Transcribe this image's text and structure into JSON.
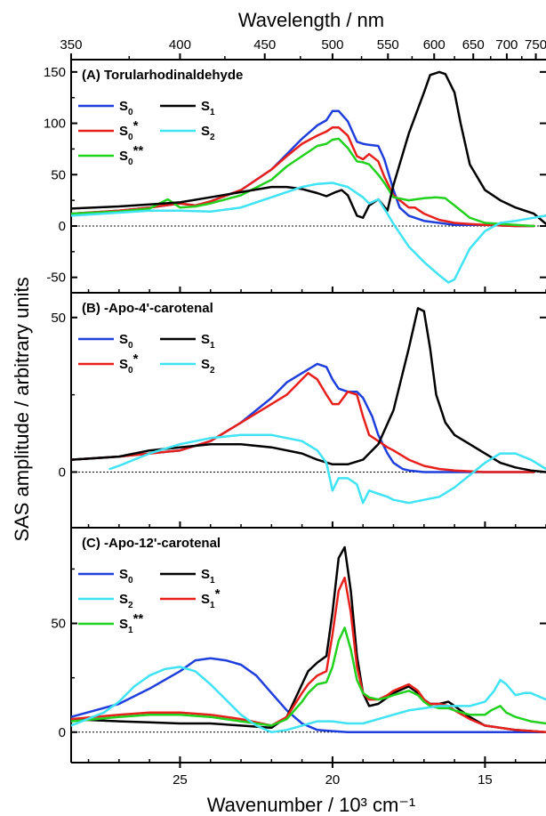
{
  "figure": {
    "top_axis_title": "Wavelength / nm",
    "bottom_axis_title": "Wavenumber / 10³ cm⁻¹",
    "y_axis_title": "SAS amplitude / arbitrary units"
  },
  "colors": {
    "S0": "#1f3fdc",
    "S0*": "#e8201c",
    "S0**": "#22d11e",
    "S1": "#000000",
    "S1*": "#e8201c",
    "S1**": "#22d11e",
    "S2": "#3fe3f3"
  },
  "chart_data": [
    {
      "type": "line",
      "panel": "A",
      "title": "(A) Torularhodinaldehyde",
      "xlabel": "Wavenumber / 10³ cm⁻¹",
      "top_xlabel": "Wavelength / nm",
      "ylabel": "SAS amplitude / arbitrary units",
      "xlim": [
        28.57,
        13.0
      ],
      "ylim": [
        -65,
        162
      ],
      "x_reversed": true,
      "grid": false,
      "zero_line": "dashed",
      "y_ticks": [
        -50,
        0,
        50,
        100,
        150
      ],
      "y_tick_labels": [
        "-50",
        "0",
        "50",
        "100",
        "150"
      ],
      "x_ticks": [
        25,
        20,
        15
      ],
      "top_ticks_nm": [
        350,
        400,
        450,
        500,
        550,
        600,
        650,
        700,
        750
      ],
      "top_tick_labels": [
        "350",
        "400",
        "450",
        "500",
        "550",
        "600",
        "650",
        "700",
        "750"
      ],
      "legend": {
        "position": "top-left",
        "entries": [
          {
            "key": "S0",
            "label": "S",
            "sub": "0",
            "sup": ""
          },
          {
            "key": "S1",
            "label": "S",
            "sub": "1",
            "sup": ""
          },
          {
            "key": "S0*",
            "label": "S",
            "sub": "0",
            "sup": "*"
          },
          {
            "key": "S2",
            "label": "S",
            "sub": "2",
            "sup": ""
          },
          {
            "key": "S0**",
            "label": "S",
            "sub": "0",
            "sup": "**"
          }
        ]
      },
      "series": [
        {
          "key": "S0",
          "x": [
            28.57,
            27,
            26,
            25,
            24.5,
            24,
            23,
            22,
            21.5,
            21,
            20.5,
            20.2,
            20,
            19.8,
            19.5,
            19.2,
            19,
            18.8,
            18.5,
            18.3,
            18,
            17.8,
            17.5,
            17,
            16.5,
            16,
            15.5,
            15,
            14,
            13.4
          ],
          "y": [
            12,
            15,
            18,
            22,
            20,
            24,
            35,
            55,
            70,
            85,
            98,
            103,
            112,
            112,
            102,
            82,
            80,
            79,
            78,
            65,
            35,
            18,
            10,
            5,
            3,
            1,
            1,
            1,
            0,
            0
          ]
        },
        {
          "key": "S0*",
          "x": [
            28.57,
            27,
            26,
            25,
            24.5,
            24,
            23,
            22,
            21.5,
            21,
            20.5,
            20.2,
            20,
            19.8,
            19.5,
            19.2,
            19,
            18.8,
            18.5,
            18.3,
            18,
            17.5,
            17.3,
            17,
            16.5,
            16,
            15.5,
            15,
            14,
            13.4
          ],
          "y": [
            12,
            15,
            18,
            22,
            20,
            24,
            35,
            55,
            68,
            80,
            88,
            92,
            96,
            96,
            88,
            68,
            65,
            70,
            63,
            48,
            30,
            18,
            18,
            12,
            6,
            3,
            2,
            1,
            0,
            0
          ]
        },
        {
          "key": "S0**",
          "x": [
            28.57,
            27,
            26,
            25.4,
            25,
            24.5,
            24,
            23,
            22,
            21.5,
            21,
            20.5,
            20.2,
            20,
            19.8,
            19.5,
            19.2,
            19,
            18.8,
            18.5,
            18.3,
            18,
            17.5,
            17,
            16.6,
            16.3,
            16,
            15.5,
            15,
            14,
            13.4
          ],
          "y": [
            12,
            14,
            17,
            26,
            18,
            19,
            22,
            30,
            45,
            58,
            68,
            78,
            80,
            84,
            85,
            76,
            63,
            62,
            60,
            50,
            42,
            28,
            25,
            27,
            28,
            27,
            20,
            8,
            3,
            1,
            0
          ]
        },
        {
          "key": "S1",
          "x": [
            28.57,
            27,
            26,
            25,
            24,
            23,
            22,
            21.5,
            21,
            20.5,
            20.2,
            19.9,
            19.7,
            19.5,
            19.2,
            19,
            18.8,
            18.5,
            18.2,
            18,
            17.5,
            17,
            16.8,
            16.5,
            16.3,
            16,
            15.8,
            15.5,
            15,
            14.5,
            14,
            13.4,
            13.0
          ],
          "y": [
            17,
            19,
            21,
            23,
            28,
            33,
            38,
            38,
            36,
            32,
            29,
            33,
            35,
            30,
            10,
            8,
            20,
            26,
            15,
            40,
            90,
            130,
            147,
            150,
            148,
            130,
            100,
            60,
            35,
            25,
            18,
            12,
            2
          ]
        },
        {
          "key": "S2",
          "x": [
            28.57,
            27,
            26,
            25,
            24,
            23,
            22,
            21,
            20.5,
            20,
            19.5,
            19,
            18.8,
            18.5,
            18.2,
            18,
            17.5,
            17,
            16.5,
            16.2,
            16,
            15.8,
            15.5,
            15,
            14.5,
            14,
            13.4,
            13.0
          ],
          "y": [
            10,
            13,
            15,
            15,
            14,
            18,
            28,
            38,
            41,
            42,
            38,
            28,
            22,
            26,
            12,
            2,
            -20,
            -35,
            -48,
            -55,
            -52,
            -40,
            -22,
            -5,
            3,
            5,
            8,
            10
          ]
        }
      ]
    },
    {
      "type": "line",
      "panel": "B",
      "title": "(B)   -Apo-4'-carotenal",
      "xlabel": "Wavenumber / 10³ cm⁻¹",
      "ylabel": "SAS amplitude / arbitrary units",
      "xlim": [
        28.57,
        13.0
      ],
      "ylim": [
        -18,
        58
      ],
      "x_reversed": true,
      "grid": false,
      "zero_line": "dashed",
      "y_ticks": [
        0,
        50
      ],
      "y_tick_labels": [
        "0",
        "50"
      ],
      "x_ticks": [
        25,
        20,
        15
      ],
      "legend": {
        "position": "top-left",
        "entries": [
          {
            "key": "S0",
            "label": "S",
            "sub": "0",
            "sup": ""
          },
          {
            "key": "S1",
            "label": "S",
            "sub": "1",
            "sup": ""
          },
          {
            "key": "S0*",
            "label": "S",
            "sub": "0",
            "sup": "*"
          },
          {
            "key": "S2",
            "label": "S",
            "sub": "2",
            "sup": ""
          }
        ]
      },
      "series": [
        {
          "key": "S0",
          "x": [
            28.57,
            27,
            26,
            25,
            24,
            23,
            22,
            21.5,
            21,
            20.5,
            20.2,
            20,
            19.8,
            19.5,
            19.2,
            19,
            18.7,
            18.5,
            18.2,
            18,
            17.7,
            17.5,
            17,
            16.5,
            16,
            15,
            14,
            13.4
          ],
          "y": [
            4,
            5,
            6,
            7,
            10,
            16,
            24,
            29,
            32,
            35,
            34,
            30,
            27,
            26,
            26,
            24,
            18,
            12,
            6,
            3,
            1,
            0.5,
            0,
            0,
            0,
            0,
            0,
            0
          ]
        },
        {
          "key": "S0*",
          "x": [
            28.57,
            27,
            26,
            25,
            24,
            23,
            22,
            21.5,
            21,
            20.8,
            20.5,
            20.2,
            20,
            19.8,
            19.5,
            19.2,
            19,
            18.8,
            18.5,
            18.2,
            18,
            17.5,
            17,
            16.5,
            16,
            15,
            14,
            13.4
          ],
          "y": [
            4,
            5,
            6,
            7,
            10,
            16,
            22,
            25,
            30,
            32,
            30,
            25,
            22,
            22,
            26,
            25,
            18,
            12,
            10,
            8,
            7,
            4,
            2,
            1,
            0.5,
            0,
            0,
            0
          ]
        },
        {
          "key": "S1",
          "x": [
            28.57,
            27,
            26,
            25,
            24,
            23,
            22,
            21,
            20.5,
            20,
            19.5,
            19,
            18.5,
            18,
            17.5,
            17.2,
            17,
            16.8,
            16.6,
            16.3,
            16,
            15.5,
            15,
            14.5,
            14,
            13.5,
            13.0
          ],
          "y": [
            4,
            5,
            7,
            8,
            9,
            9,
            8,
            6,
            4,
            2.5,
            2.5,
            4,
            9,
            20,
            40,
            53,
            52,
            40,
            25,
            16,
            12,
            9,
            6,
            3,
            1.5,
            0.5,
            0
          ]
        },
        {
          "key": "S2",
          "x": [
            27.3,
            27,
            26,
            25,
            24,
            23,
            22,
            21,
            20.5,
            20.2,
            20,
            19.8,
            19.5,
            19.2,
            19,
            18.8,
            18.5,
            18.2,
            18,
            17.5,
            17,
            16.5,
            16,
            15.5,
            15,
            14.5,
            14,
            13.5,
            13.0
          ],
          "y": [
            1,
            2,
            6,
            9,
            11,
            12,
            12,
            10,
            7,
            3,
            -6,
            -2,
            -2,
            -4,
            -10,
            -6,
            -7,
            -8,
            -9,
            -10,
            -9,
            -8,
            -5,
            -1,
            3,
            6,
            6,
            4,
            1
          ]
        }
      ]
    },
    {
      "type": "line",
      "panel": "C",
      "title": "(C)   -Apo-12'-carotenal",
      "xlabel": "Wavenumber / 10³ cm⁻¹",
      "ylabel": "SAS amplitude / arbitrary units",
      "xlim": [
        28.57,
        13.0
      ],
      "ylim": [
        -14,
        94
      ],
      "x_reversed": true,
      "grid": false,
      "zero_line": "dashed",
      "y_ticks": [
        0,
        50
      ],
      "y_tick_labels": [
        "0",
        "50"
      ],
      "x_ticks": [
        25,
        20,
        15
      ],
      "x_tick_labels": [
        "25",
        "20",
        "15"
      ],
      "legend": {
        "position": "top-left",
        "entries": [
          {
            "key": "S0",
            "label": "S",
            "sub": "0",
            "sup": ""
          },
          {
            "key": "S1",
            "label": "S",
            "sub": "1",
            "sup": ""
          },
          {
            "key": "S2",
            "label": "S",
            "sub": "2",
            "sup": ""
          },
          {
            "key": "S1*",
            "label": "S",
            "sub": "1",
            "sup": "*"
          },
          {
            "key": "S1**",
            "label": "S",
            "sub": "1",
            "sup": "**"
          }
        ]
      },
      "series": [
        {
          "key": "S0",
          "x": [
            28.57,
            27,
            26,
            25,
            24.5,
            24,
            23.5,
            23,
            22.5,
            22,
            21.5,
            21,
            20.5,
            20,
            19.5,
            19,
            18,
            17,
            15,
            13.0
          ],
          "y": [
            7,
            13,
            20,
            28,
            33,
            34,
            33,
            31,
            26,
            18,
            10,
            4,
            1,
            0.5,
            0,
            0,
            0,
            0,
            0,
            0
          ]
        },
        {
          "key": "S1",
          "x": [
            28.57,
            27,
            26,
            25,
            24,
            23,
            22,
            21.5,
            21,
            20.8,
            20.5,
            20.2,
            20,
            19.8,
            19.6,
            19.4,
            19.2,
            19,
            18.8,
            18.5,
            18.2,
            18,
            17.5,
            17.2,
            17,
            16.8,
            16.5,
            16.2,
            16,
            15.5,
            15,
            14,
            13.0
          ],
          "y": [
            6,
            5,
            4.5,
            4,
            4,
            3,
            2,
            7,
            22,
            28,
            32,
            35,
            55,
            80,
            85,
            65,
            35,
            18,
            12,
            13,
            16,
            18,
            21,
            18,
            15,
            13,
            13,
            14,
            12,
            7,
            3,
            1,
            0
          ]
        },
        {
          "key": "S1*",
          "x": [
            28.57,
            27,
            26,
            25,
            24,
            23,
            22,
            21.5,
            21,
            20.8,
            20.5,
            20.2,
            20,
            19.8,
            19.6,
            19.4,
            19.2,
            19,
            18.8,
            18.5,
            18.2,
            18,
            17.5,
            17.2,
            17,
            16.8,
            16.5,
            16.2,
            16,
            15.5,
            15,
            14,
            13.0
          ],
          "y": [
            6,
            8,
            9,
            9,
            8,
            6,
            3,
            7,
            18,
            22,
            26,
            28,
            45,
            65,
            71,
            55,
            30,
            18,
            15,
            15,
            17,
            19,
            22,
            19,
            15,
            13,
            13,
            12,
            10,
            6,
            3,
            1,
            0
          ]
        },
        {
          "key": "S1**",
          "x": [
            28.57,
            27,
            26,
            25,
            24,
            23,
            22,
            21.5,
            21,
            20.8,
            20.5,
            20.2,
            20,
            19.8,
            19.6,
            19.4,
            19.2,
            19,
            18.8,
            18.5,
            18.2,
            18,
            17.5,
            17.2,
            17,
            16.8,
            16.5,
            16.2,
            16,
            15.5,
            15,
            14.8,
            14.5,
            14.3,
            14,
            13.5,
            13.0
          ],
          "y": [
            5,
            7,
            8,
            8,
            7,
            5,
            3,
            6,
            14,
            18,
            22,
            23,
            30,
            42,
            48,
            38,
            24,
            18,
            16,
            15,
            16,
            17,
            19,
            17,
            14,
            12,
            11,
            11,
            10,
            8,
            8,
            10,
            12,
            9,
            7,
            5,
            4
          ]
        },
        {
          "key": "S2",
          "x": [
            28.57,
            27.5,
            27,
            26.5,
            26,
            25.5,
            25,
            24.5,
            24,
            23.5,
            23,
            22.5,
            22,
            21.5,
            21,
            20.5,
            20,
            19.5,
            19,
            18.5,
            18,
            17.5,
            17,
            16.5,
            16,
            15.5,
            15,
            14.7,
            14.5,
            14.3,
            14,
            13.7,
            13.5,
            13.0
          ],
          "y": [
            3,
            9,
            14,
            21,
            26,
            29,
            30,
            28,
            22,
            15,
            8,
            3,
            0,
            1,
            3,
            5,
            5,
            4,
            4,
            6,
            8,
            10,
            11,
            12,
            12,
            12,
            14,
            19,
            24,
            22,
            17,
            18,
            18,
            15
          ]
        }
      ]
    }
  ]
}
